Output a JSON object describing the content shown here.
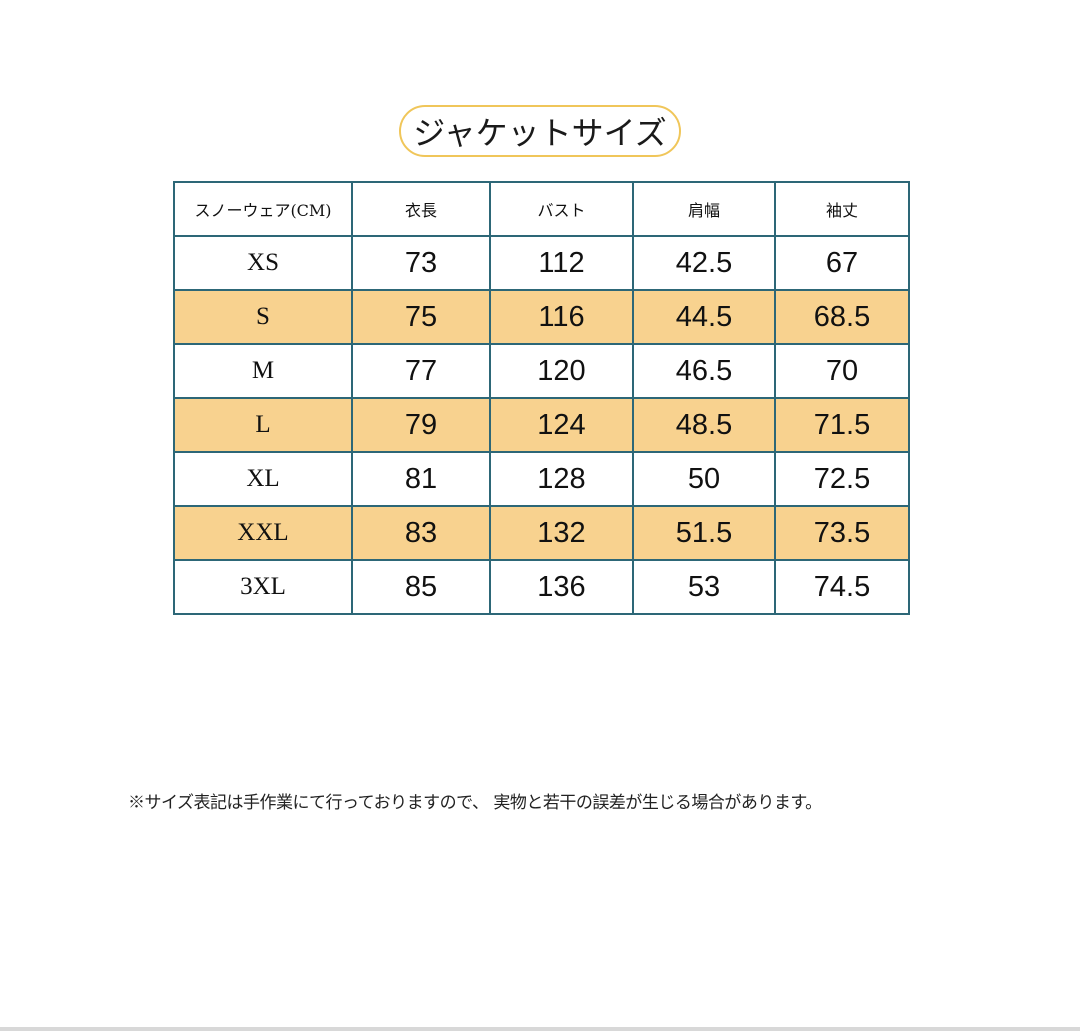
{
  "title": "ジャケットサイズ",
  "table": {
    "headers": [
      "スノーウェア(CM)",
      "衣長",
      "バスト",
      "肩幅",
      "袖丈"
    ],
    "rows": [
      [
        "XS",
        "73",
        "112",
        "42.5",
        "67"
      ],
      [
        "S",
        "75",
        "116",
        "44.5",
        "68.5"
      ],
      [
        "M",
        "77",
        "120",
        "46.5",
        "70"
      ],
      [
        "L",
        "79",
        "124",
        "48.5",
        "71.5"
      ],
      [
        "XL",
        "81",
        "128",
        "50",
        "72.5"
      ],
      [
        "XXL",
        "83",
        "132",
        "51.5",
        "73.5"
      ],
      [
        "3XL",
        "85",
        "136",
        "53",
        "74.5"
      ]
    ]
  },
  "note": "※サイズ表記は手作業にて行っておりますので、 実物と若干の誤差が生じる場合があります。",
  "colors": {
    "highlight_row": "#f8d28f",
    "border": "#2d6777",
    "title_outline": "#f0c65a"
  }
}
